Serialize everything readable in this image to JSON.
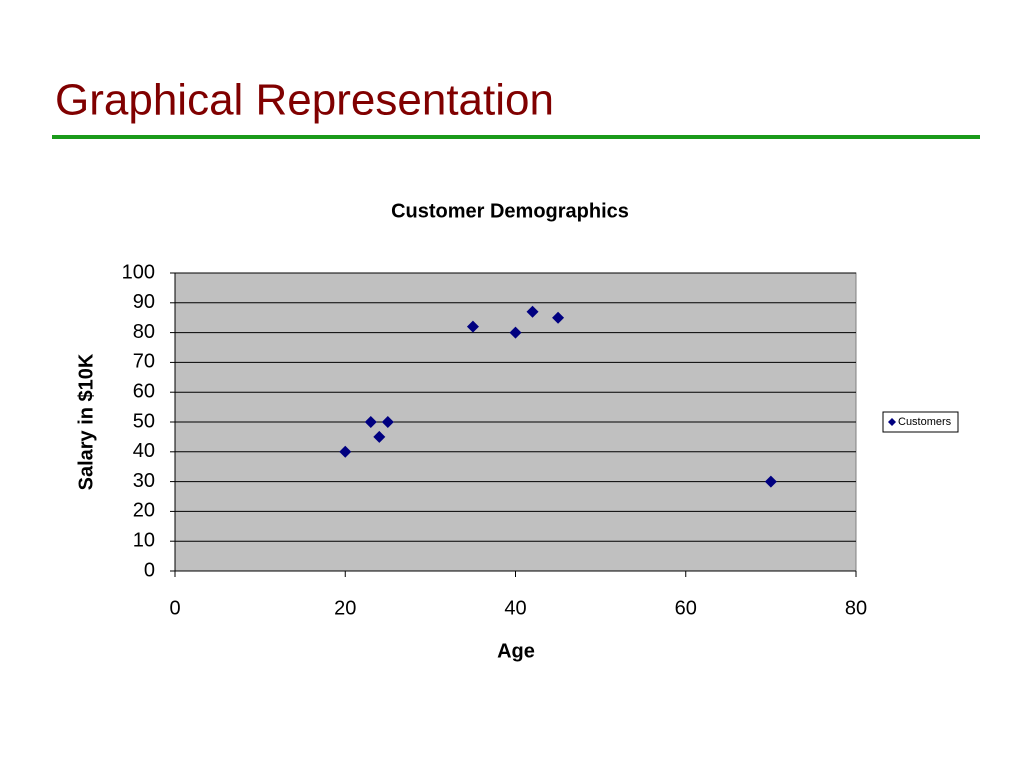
{
  "slide_title": "Graphical Representation",
  "chart_data": {
    "type": "scatter",
    "title": "Customer Demographics",
    "x_label": "Age",
    "y_label": "Salary in $10K",
    "series": [
      {
        "name": "Customers",
        "color": "#000080",
        "x": [
          20,
          23,
          24,
          25,
          35,
          40,
          42,
          45,
          70
        ],
        "values": [
          40,
          50,
          45,
          50,
          82,
          80,
          87,
          85,
          30
        ]
      }
    ],
    "xlim": [
      0,
      80
    ],
    "xticks": [
      0,
      20,
      40,
      60,
      80
    ],
    "ylim": [
      0,
      100
    ],
    "yticks": [
      0,
      10,
      20,
      30,
      40,
      50,
      60,
      70,
      80,
      90,
      100
    ],
    "grid": true,
    "legend": "right"
  }
}
